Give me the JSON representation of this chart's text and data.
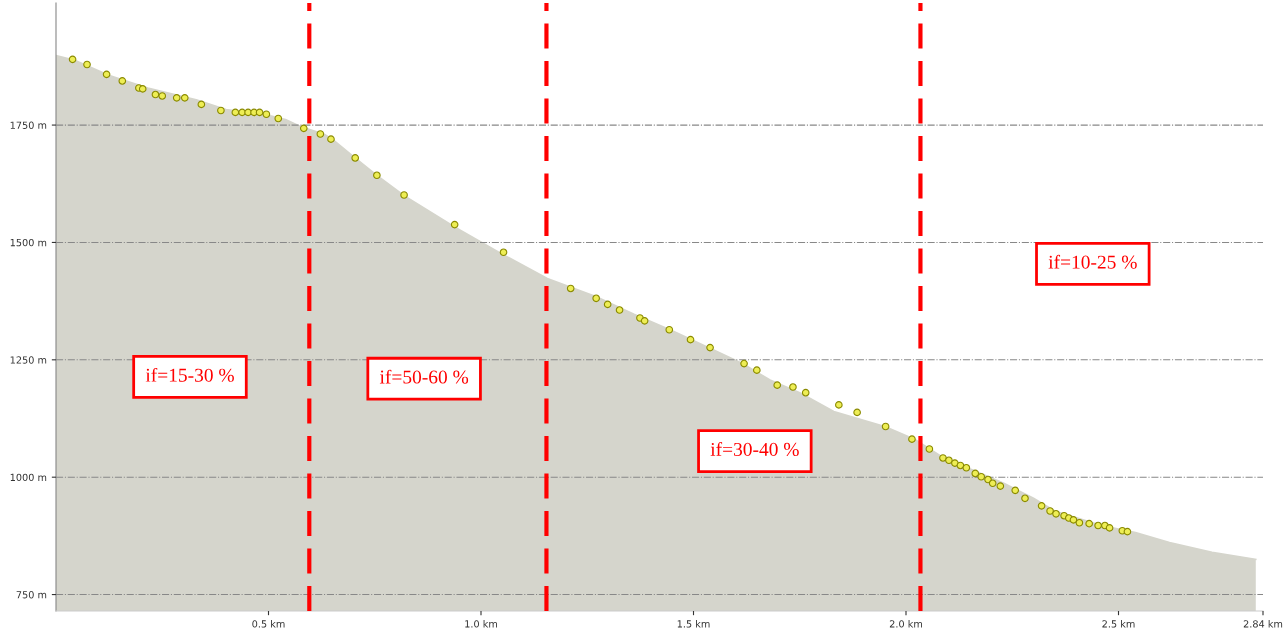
{
  "chart_data": {
    "type": "area",
    "xlim": [
      0,
      2.84
    ],
    "ylim": [
      715,
      2010
    ],
    "xticks": [
      {
        "value": 0.5,
        "label": "0.5 km"
      },
      {
        "value": 1.0,
        "label": "1.0 km"
      },
      {
        "value": 1.5,
        "label": "1.5 km"
      },
      {
        "value": 2.0,
        "label": "2.0 km"
      },
      {
        "value": 2.5,
        "label": "2.5 km"
      },
      {
        "value": 2.84,
        "label": "2.84 km"
      }
    ],
    "yticks": [
      {
        "value": 750,
        "label": "750 m"
      },
      {
        "value": 1000,
        "label": "1000 m"
      },
      {
        "value": 1250,
        "label": "1250 m"
      },
      {
        "value": 1500,
        "label": "1500 m"
      },
      {
        "value": 1750,
        "label": "1750 m"
      }
    ],
    "grid": "y",
    "series": [
      {
        "color": "#d5d5cc",
        "x": [
          0,
          0.044,
          0.124,
          0.216,
          0.33,
          0.4,
          0.49,
          0.54,
          0.58,
          0.63,
          0.65,
          0.7,
          0.755,
          0.82,
          0.94,
          1.05,
          1.156,
          1.27,
          1.36,
          1.45,
          1.55,
          1.615,
          1.68,
          1.75,
          1.83,
          1.95,
          2.02,
          2.085,
          2.165,
          2.23,
          2.3,
          2.35,
          2.46,
          2.54,
          2.62,
          2.72,
          2.823
        ],
        "values": [
          1898,
          1888,
          1856,
          1829,
          1804,
          1783,
          1773,
          1762,
          1745,
          1731,
          1720,
          1683,
          1643,
          1599,
          1532,
          1475,
          1423,
          1385,
          1347,
          1312,
          1270,
          1242,
          1207,
          1180,
          1140,
          1108,
          1081,
          1043,
          1012,
          987,
          955,
          928,
          897,
          882,
          861,
          840,
          825
        ]
      },
      {
        "type": "scatter",
        "color": "#eeee55",
        "marker": "circle",
        "x": [
          0.039,
          0.073,
          0.119,
          0.156,
          0.195,
          0.204,
          0.234,
          0.25,
          0.284,
          0.303,
          0.342,
          0.388,
          0.422,
          0.438,
          0.452,
          0.466,
          0.479,
          0.495,
          0.523,
          0.583,
          0.622,
          0.647,
          0.704,
          0.755,
          0.819,
          0.938,
          1.053,
          1.211,
          1.271,
          1.298,
          1.326,
          1.374,
          1.385,
          1.443,
          1.493,
          1.539,
          1.619,
          1.649,
          1.697,
          1.734,
          1.764,
          1.842,
          1.885,
          1.952,
          2.014,
          2.055,
          2.087,
          2.101,
          2.115,
          2.128,
          2.142,
          2.163,
          2.177,
          2.193,
          2.204,
          2.222,
          2.257,
          2.28,
          2.319,
          2.339,
          2.353,
          2.372,
          2.383,
          2.394,
          2.408,
          2.431,
          2.452,
          2.468,
          2.479,
          2.509,
          2.521
        ],
        "values": [
          1890,
          1879,
          1858,
          1844,
          1829,
          1827,
          1815,
          1812,
          1808,
          1808,
          1794,
          1781,
          1777,
          1777,
          1777,
          1777,
          1777,
          1773,
          1764,
          1743,
          1731,
          1720,
          1680,
          1643,
          1601,
          1538,
          1479,
          1402,
          1381,
          1368,
          1356,
          1339,
          1333,
          1314,
          1293,
          1276,
          1242,
          1228,
          1196,
          1192,
          1180,
          1154,
          1138,
          1108,
          1081,
          1060,
          1041,
          1036,
          1030,
          1025,
          1020,
          1008,
          1001,
          995,
          987,
          981,
          972,
          955,
          939,
          928,
          922,
          918,
          913,
          909,
          903,
          901,
          897,
          897,
          892,
          886,
          884
        ]
      }
    ],
    "ref_lines": [
      {
        "axis": "x",
        "value": 0.596,
        "color": "#ff0000",
        "line_style": "dashed"
      },
      {
        "axis": "x",
        "value": 1.154,
        "color": "#ff0000",
        "line_style": "dashed"
      },
      {
        "axis": "x",
        "value": 2.034,
        "color": "#ff0000",
        "line_style": "dashed"
      }
    ],
    "annotations": [
      "if=15-30 %",
      "if=50-60 %",
      "if=30-40 %",
      "if=10-25 %"
    ]
  }
}
